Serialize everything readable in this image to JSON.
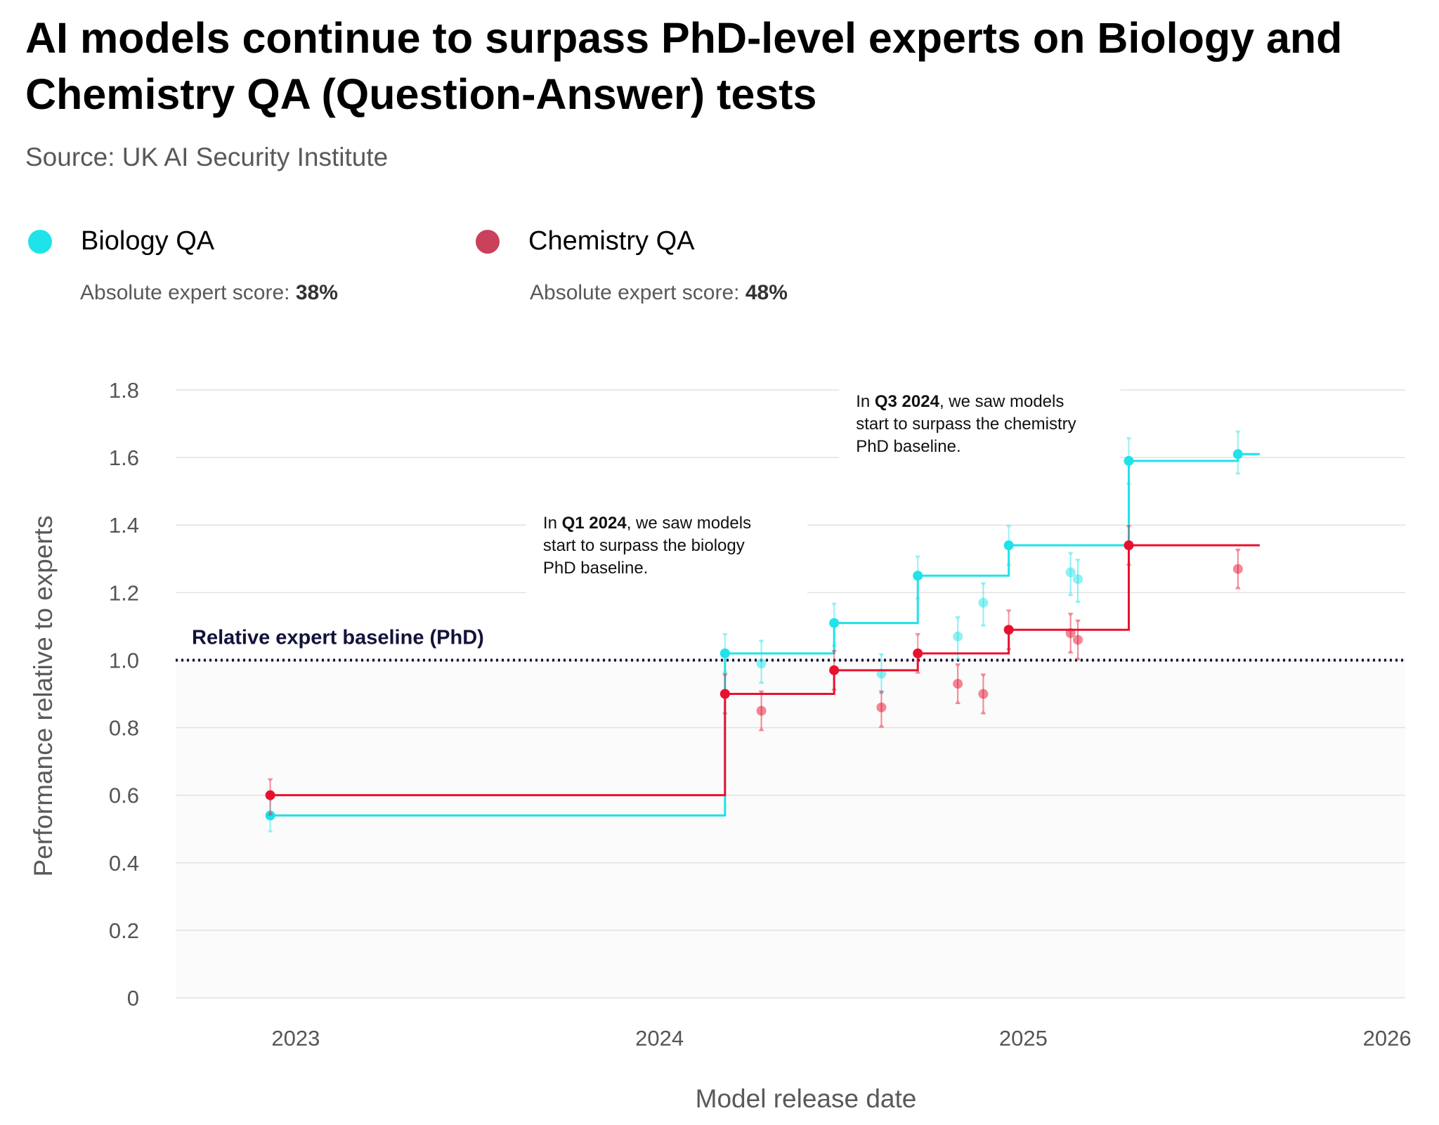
{
  "header": {
    "title": "AI models continue to surpass PhD-level experts on Biology and Chemistry QA (Question-Answer) tests",
    "source": "Source: UK AI Security Institute"
  },
  "legend": [
    {
      "name": "Biology QA",
      "color": "#1EE3E8",
      "score_label": "Absolute expert score:",
      "score_value": "38%"
    },
    {
      "name": "Chemistry QA",
      "color": "#C9415B",
      "score_label": "Absolute expert score:",
      "score_value": "48%"
    }
  ],
  "chart_data": {
    "type": "line",
    "title": "AI models continue to surpass PhD-level experts on Biology and Chemistry QA (Question-Answer) tests",
    "xlabel": "Model release date",
    "ylabel": "Performance relative to experts",
    "xlim": [
      2022.67,
      2026.05
    ],
    "ylim": [
      0,
      1.8
    ],
    "x_ticks": [
      2023,
      2024,
      2025,
      2026
    ],
    "x_tick_labels": [
      "2023",
      "2024",
      "2025",
      "2026"
    ],
    "y_ticks": [
      0,
      0.2,
      0.4,
      0.6,
      0.8,
      1.0,
      1.2,
      1.4,
      1.6,
      1.8
    ],
    "y_tick_labels": [
      "0",
      "0.2",
      "0.4",
      "0.6",
      "0.8",
      "1.0",
      "1.2",
      "1.4",
      "1.6",
      "1.8"
    ],
    "grid": true,
    "baseline": {
      "y": 1.0,
      "label": "Relative expert baseline (PhD)"
    },
    "annotations": [
      {
        "x": 2023.68,
        "y": 1.39,
        "prefix": "In ",
        "bold": "Q1 2024",
        "lines": [
          ", we saw models",
          "start to surpass the biology",
          "PhD baseline."
        ]
      },
      {
        "x": 2024.54,
        "y": 1.75,
        "prefix": "In ",
        "bold": "Q3 2024",
        "lines": [
          ", we saw models",
          "start to surpass the chemistry",
          "PhD baseline."
        ]
      }
    ],
    "series": [
      {
        "name": "Biology QA",
        "color": "#1EE3E8",
        "frontier_end_x": 2025.65,
        "frontier": [
          {
            "x": 2022.93,
            "y": 0.54,
            "lo": 0.49,
            "hi": 0.59
          },
          {
            "x": 2024.18,
            "y": 1.02,
            "lo": 0.96,
            "hi": 1.08
          },
          {
            "x": 2024.48,
            "y": 1.11,
            "lo": 1.04,
            "hi": 1.17
          },
          {
            "x": 2024.71,
            "y": 1.25,
            "lo": 1.18,
            "hi": 1.31
          },
          {
            "x": 2024.96,
            "y": 1.34,
            "lo": 1.28,
            "hi": 1.4
          },
          {
            "x": 2025.29,
            "y": 1.59,
            "lo": 1.52,
            "hi": 1.66
          },
          {
            "x": 2025.59,
            "y": 1.61,
            "lo": 1.55,
            "hi": 1.68
          }
        ],
        "others": [
          {
            "x": 2024.28,
            "y": 0.99,
            "lo": 0.93,
            "hi": 1.06
          },
          {
            "x": 2024.61,
            "y": 0.96,
            "lo": 0.9,
            "hi": 1.02
          },
          {
            "x": 2024.82,
            "y": 1.07,
            "lo": 1.0,
            "hi": 1.13
          },
          {
            "x": 2024.89,
            "y": 1.17,
            "lo": 1.1,
            "hi": 1.23
          },
          {
            "x": 2025.13,
            "y": 1.26,
            "lo": 1.19,
            "hi": 1.32
          },
          {
            "x": 2025.15,
            "y": 1.24,
            "lo": 1.17,
            "hi": 1.3
          }
        ]
      },
      {
        "name": "Chemistry QA",
        "color": "#E8112D",
        "frontier_end_x": 2025.65,
        "frontier": [
          {
            "x": 2022.93,
            "y": 0.6,
            "lo": 0.54,
            "hi": 0.65
          },
          {
            "x": 2024.18,
            "y": 0.9,
            "lo": 0.84,
            "hi": 0.96
          },
          {
            "x": 2024.48,
            "y": 0.97,
            "lo": 0.91,
            "hi": 1.03
          },
          {
            "x": 2024.71,
            "y": 1.02,
            "lo": 0.96,
            "hi": 1.08
          },
          {
            "x": 2024.96,
            "y": 1.09,
            "lo": 1.03,
            "hi": 1.15
          },
          {
            "x": 2025.29,
            "y": 1.34,
            "lo": 1.28,
            "hi": 1.4
          }
        ],
        "others": [
          {
            "x": 2024.28,
            "y": 0.85,
            "lo": 0.79,
            "hi": 0.91
          },
          {
            "x": 2024.61,
            "y": 0.86,
            "lo": 0.8,
            "hi": 0.91
          },
          {
            "x": 2024.82,
            "y": 0.93,
            "lo": 0.87,
            "hi": 0.99
          },
          {
            "x": 2024.89,
            "y": 0.9,
            "lo": 0.84,
            "hi": 0.96
          },
          {
            "x": 2025.13,
            "y": 1.08,
            "lo": 1.02,
            "hi": 1.14
          },
          {
            "x": 2025.15,
            "y": 1.06,
            "lo": 1.0,
            "hi": 1.12
          },
          {
            "x": 2025.59,
            "y": 1.27,
            "lo": 1.21,
            "hi": 1.33
          }
        ]
      }
    ]
  }
}
